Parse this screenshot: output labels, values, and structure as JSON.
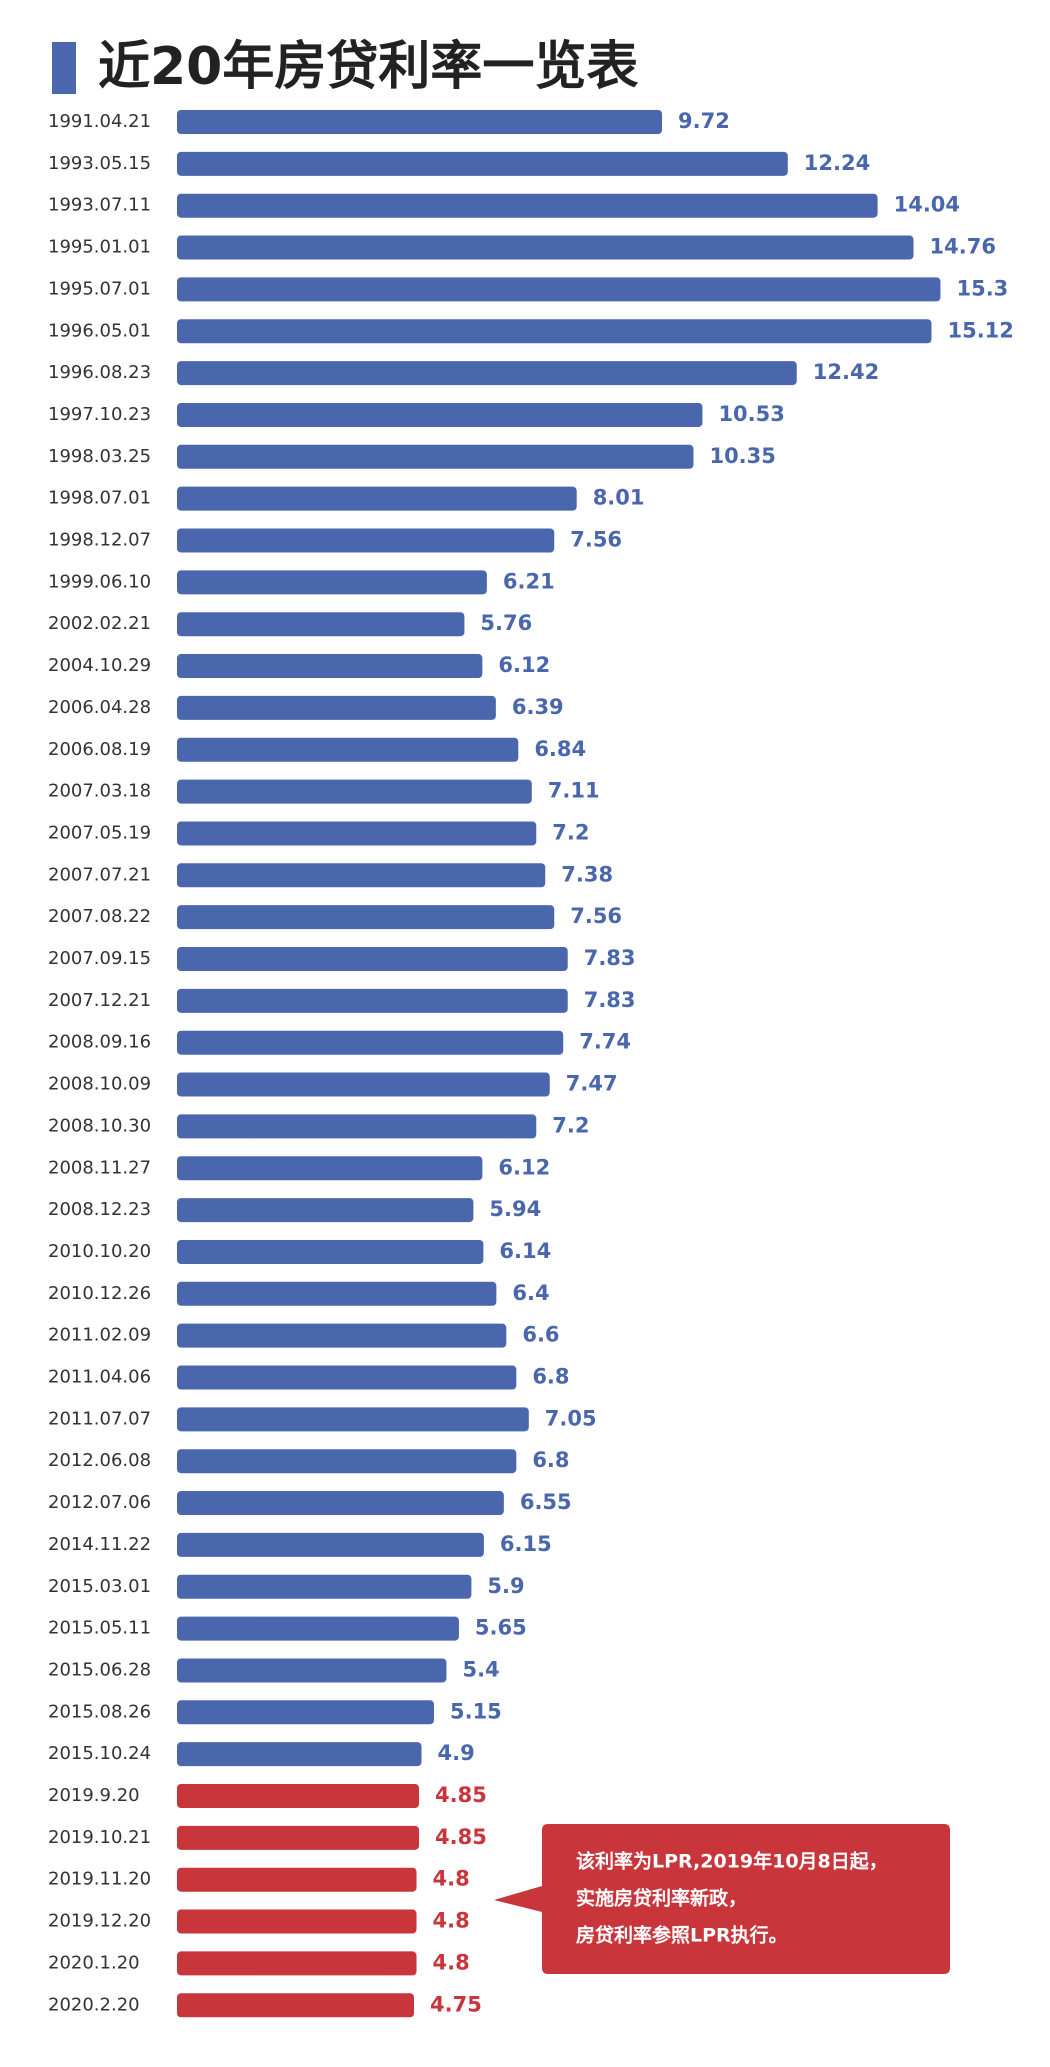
{
  "chart_data": {
    "type": "bar",
    "orientation": "horizontal",
    "title": "近20年房贷利率一览表",
    "categories": [
      "1991.04.21",
      "1993.05.15",
      "1993.07.11",
      "1995.01.01",
      "1995.07.01",
      "1996.05.01",
      "1996.08.23",
      "1997.10.23",
      "1998.03.25",
      "1998.07.01",
      "1998.12.07",
      "1999.06.10",
      "2002.02.21",
      "2004.10.29",
      "2006.04.28",
      "2006.08.19",
      "2007.03.18",
      "2007.05.19",
      "2007.07.21",
      "2007.08.22",
      "2007.09.15",
      "2007.12.21",
      "2008.09.16",
      "2008.10.09",
      "2008.10.30",
      "2008.11.27",
      "2008.12.23",
      "2010.10.20",
      "2010.12.26",
      "2011.02.09",
      "2011.04.06",
      "2011.07.07",
      "2012.06.08",
      "2012.07.06",
      "2014.11.22",
      "2015.03.01",
      "2015.05.11",
      "2015.06.28",
      "2015.08.26",
      "2015.10.24",
      "2019.9.20",
      "2019.10.21",
      "2019.11.20",
      "2019.12.20",
      "2020.1.20",
      "2020.2.20"
    ],
    "values": [
      9.72,
      12.24,
      14.04,
      14.76,
      15.3,
      15.12,
      12.42,
      10.53,
      10.35,
      8.01,
      7.56,
      6.21,
      5.76,
      6.12,
      6.39,
      6.84,
      7.11,
      7.2,
      7.38,
      7.56,
      7.83,
      7.83,
      7.74,
      7.47,
      7.2,
      6.12,
      5.94,
      6.14,
      6.4,
      6.6,
      6.8,
      7.05,
      6.8,
      6.55,
      6.15,
      5.9,
      5.65,
      5.4,
      5.15,
      4.9,
      4.85,
      4.85,
      4.8,
      4.8,
      4.8,
      4.75
    ],
    "colors": [
      "#4a67ad",
      "#4a67ad",
      "#4a67ad",
      "#4a67ad",
      "#4a67ad",
      "#4a67ad",
      "#4a67ad",
      "#4a67ad",
      "#4a67ad",
      "#4a67ad",
      "#4a67ad",
      "#4a67ad",
      "#4a67ad",
      "#4a67ad",
      "#4a67ad",
      "#4a67ad",
      "#4a67ad",
      "#4a67ad",
      "#4a67ad",
      "#4a67ad",
      "#4a67ad",
      "#4a67ad",
      "#4a67ad",
      "#4a67ad",
      "#4a67ad",
      "#4a67ad",
      "#4a67ad",
      "#4a67ad",
      "#4a67ad",
      "#4a67ad",
      "#4a67ad",
      "#4a67ad",
      "#4a67ad",
      "#4a67ad",
      "#4a67ad",
      "#4a67ad",
      "#4a67ad",
      "#4a67ad",
      "#4a67ad",
      "#4a67ad",
      "#c8353a",
      "#c8353a",
      "#c8353a",
      "#c8353a",
      "#c8353a",
      "#c8353a"
    ],
    "annotation": [
      "该利率为LPR,2019年10月8日起，",
      "实施房贷利率新政，",
      "房贷利率参照LPR执行。"
    ]
  }
}
